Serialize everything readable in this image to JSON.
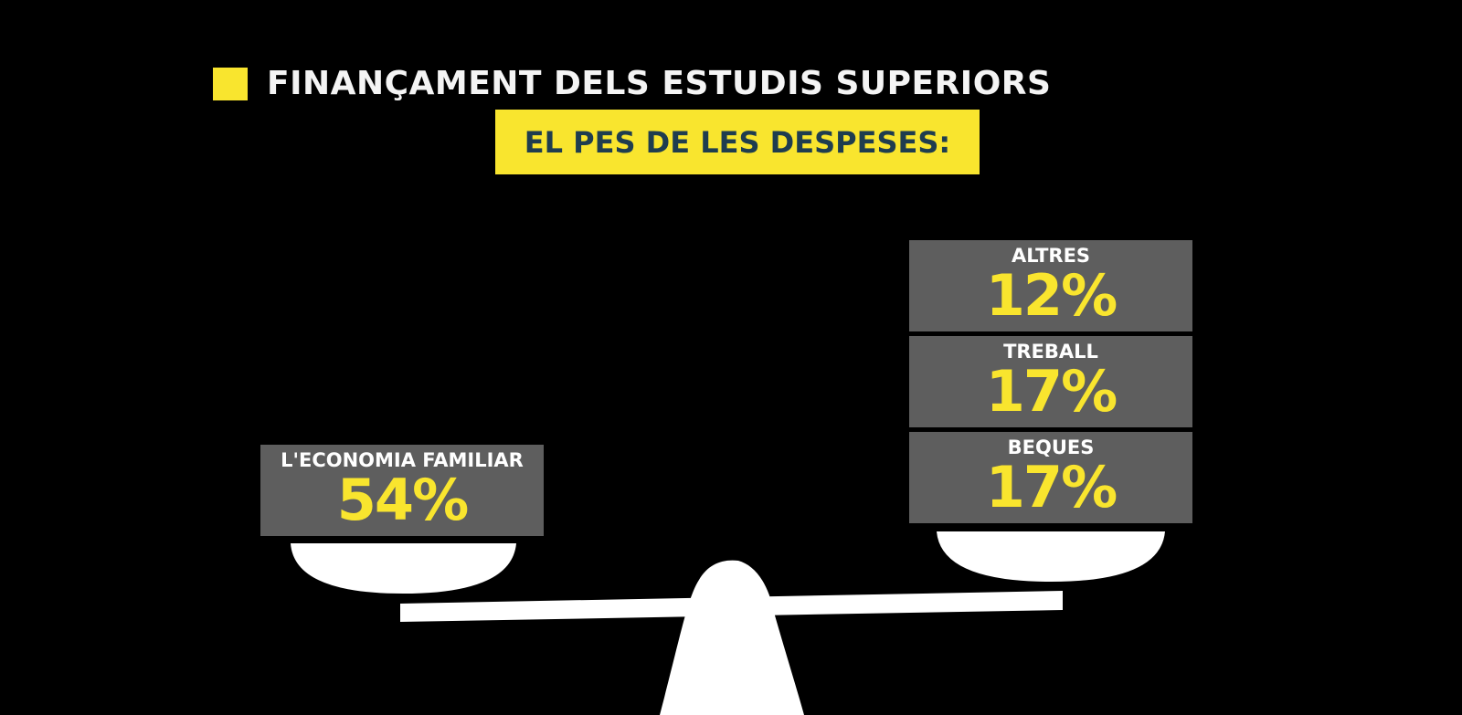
{
  "title": "FINANÇAMENT DELS ESTUDIS SUPERIORS",
  "subtitle": "EL PES DE LES DESPESES:",
  "colors": {
    "background": "#000000",
    "accent": "#f9e52e",
    "box": "#5e5e5e",
    "subtitle_text": "#1f3d4f",
    "scale": "#ffffff"
  },
  "left_pan": {
    "items": [
      {
        "label": "L'ECONOMIA FAMILIAR",
        "value": "54%"
      }
    ]
  },
  "right_pan": {
    "items": [
      {
        "label": "ALTRES",
        "value": "12%"
      },
      {
        "label": "TREBALL",
        "value": "17%"
      },
      {
        "label": "BEQUES",
        "value": "17%"
      }
    ]
  }
}
